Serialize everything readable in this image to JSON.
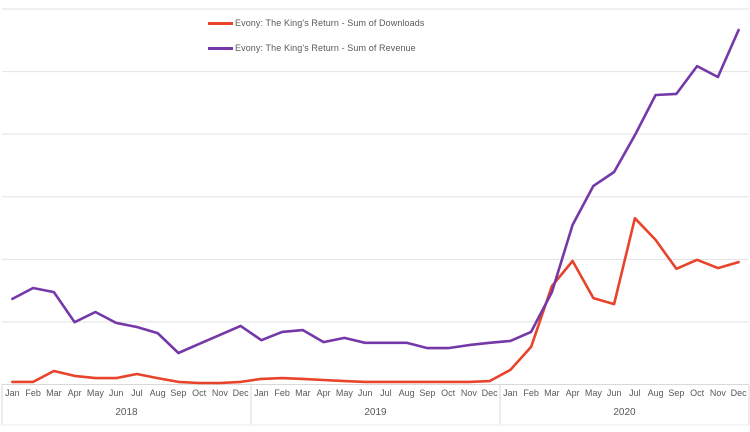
{
  "chart_data": {
    "type": "line",
    "title": "",
    "xlabel": "",
    "ylabel": "",
    "x_axis": {
      "years": [
        "2018",
        "2019",
        "2020"
      ],
      "months": [
        "Jan",
        "Feb",
        "Mar",
        "Apr",
        "May",
        "Jun",
        "Jul",
        "Aug",
        "Sep",
        "Oct",
        "Nov",
        "Dec"
      ]
    },
    "y_axis": {
      "visible_labels": false,
      "range_relative": [
        0,
        100
      ],
      "gridlines": 7
    },
    "legend_position": "top",
    "grid": true,
    "series": [
      {
        "name": "Evony: The King's Return - Sum of Downloads",
        "color": "#E8432B",
        "values": [
          0.7,
          0.7,
          3.6,
          2.3,
          1.7,
          1.7,
          2.8,
          1.7,
          0.7,
          0.4,
          0.4,
          0.7,
          1.5,
          1.7,
          1.5,
          1.2,
          0.9,
          0.7,
          0.7,
          0.7,
          0.7,
          0.7,
          0.7,
          0.9,
          3.9,
          10.0,
          26.2,
          32.9,
          23.0,
          21.4,
          44.3,
          38.5,
          30.8,
          33.2,
          31.0,
          32.6
        ]
      },
      {
        "name": "Evony: The King's Return - Sum of Revenue",
        "color": "#7438A8",
        "values": [
          22.8,
          25.7,
          24.6,
          16.6,
          19.3,
          16.4,
          15.3,
          13.7,
          8.4,
          10.8,
          13.2,
          15.6,
          11.8,
          14.0,
          14.5,
          11.3,
          12.4,
          11.1,
          11.1,
          11.1,
          9.7,
          9.7,
          10.5,
          11.1,
          11.6,
          14.0,
          24.6,
          42.5,
          52.9,
          56.6,
          66.4,
          77.1,
          77.4,
          84.8,
          81.9,
          94.4
        ]
      }
    ]
  },
  "legend": {
    "items": [
      {
        "label": "Evony: The King's Return - Sum of Downloads"
      },
      {
        "label": "Evony: The King's Return - Sum of Revenue"
      }
    ]
  },
  "colors": {
    "downloads_line": "#E8432B",
    "revenue_line": "#7438A8",
    "gridline": "#E2E2E2",
    "axis_line": "#D9D9D9",
    "label_text": "#595959"
  }
}
